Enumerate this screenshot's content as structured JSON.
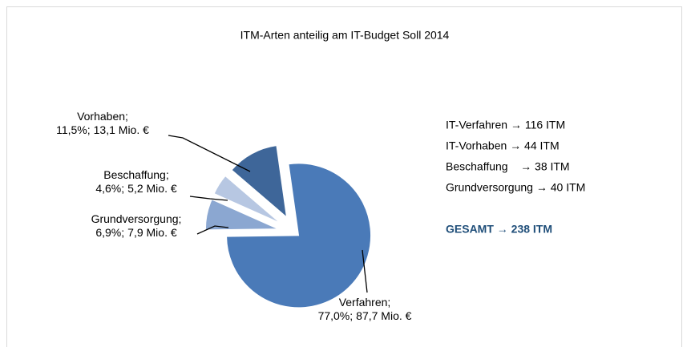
{
  "chart_data": {
    "type": "pie",
    "title": "ITM-Arten anteilig am IT-Budget Soll 2014",
    "categories": [
      "Verfahren;",
      "Grundversorgung;",
      "Beschaffung;",
      "Vorhaben;"
    ],
    "values": [
      77.0,
      6.9,
      4.6,
      11.5
    ],
    "value_labels": [
      "77,0%;",
      "6,9%;",
      "4,6%;",
      "11,5%;"
    ],
    "amounts": [
      87.7,
      7.9,
      5.2,
      13.1
    ],
    "amount_labels": [
      "87,7 Mio. €",
      "7,9 Mio. €",
      "5,2 Mio. €",
      "13,1 Mio. €"
    ],
    "colors": [
      "#4a7ab8",
      "#8ba7d1",
      "#b7c7e2",
      "#3e6699"
    ],
    "annotations": [
      "IT-Verfahren → 116 ITM",
      "IT-Vorhaben → 44 ITM",
      "Beschaffung    → 38 ITM",
      "Grundversorgung → 40 ITM"
    ],
    "total": "GESAMT → 238 ITM"
  }
}
